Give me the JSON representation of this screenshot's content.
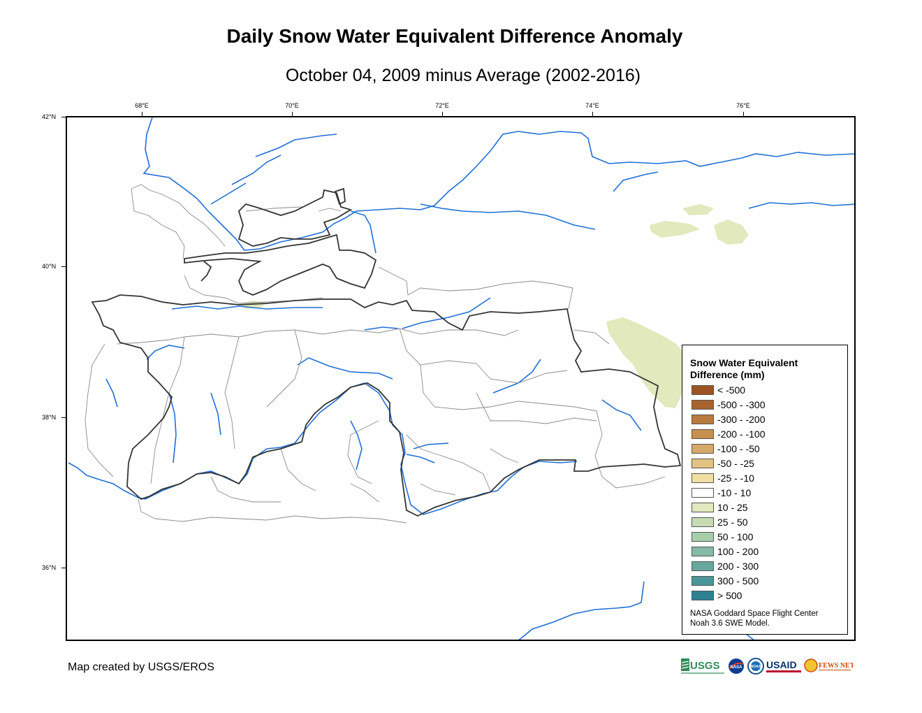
{
  "title": "Daily Snow Water Equivalent Difference Anomaly",
  "subtitle": "October 04, 2009 minus Average (2002-2016)",
  "axes": {
    "longitude_labels": [
      "68°E",
      "70°E",
      "72°E",
      "74°E",
      "76°E"
    ],
    "latitude_labels": [
      "42°N",
      "40°N",
      "38°N",
      "36°N"
    ]
  },
  "legend": {
    "title": "Snow Water Equivalent Difference (mm)",
    "items": [
      {
        "label": "< -500",
        "color": "#9c5422"
      },
      {
        "label": "-500 - -300",
        "color": "#a8642e"
      },
      {
        "label": "-300 - -200",
        "color": "#b97a3d"
      },
      {
        "label": "-200 - -100",
        "color": "#c7904f"
      },
      {
        "label": "-100 - -50",
        "color": "#d6a968"
      },
      {
        "label": "-50 - -25",
        "color": "#e4c483"
      },
      {
        "label": "-25 - -10",
        "color": "#f1dfa2"
      },
      {
        "label": "-10 - 10",
        "color": "#ffffff"
      },
      {
        "label": "10 - 25",
        "color": "#e1e9bd"
      },
      {
        "label": "25 - 50",
        "color": "#c5dcb3"
      },
      {
        "label": "50 - 100",
        "color": "#a7cfab"
      },
      {
        "label": "100 - 200",
        "color": "#85baa4"
      },
      {
        "label": "200 - 300",
        "color": "#66a89e"
      },
      {
        "label": "300 - 500",
        "color": "#4b969a"
      },
      {
        "label": "> 500",
        "color": "#2d8191"
      }
    ],
    "credit_line1": "NASA Goddard Space Flight Center",
    "credit_line2": "Noah 3.6 SWE Model."
  },
  "footer": "Map created by USGS/EROS",
  "logos": [
    {
      "name": "usgs-logo",
      "text": "USGS"
    },
    {
      "name": "nasa-logo",
      "text": "NASA"
    },
    {
      "name": "noaa-logo",
      "text": "NOAA"
    },
    {
      "name": "usaid-logo",
      "text": "USAID"
    },
    {
      "name": "fewsnet-logo",
      "text": "FEWS NET"
    }
  ],
  "colors": {
    "river": "#1f6fd6",
    "country_border": "#333333",
    "basin_boundary": "#8a8a8a",
    "positive_anomaly": "#e1e9bd"
  }
}
